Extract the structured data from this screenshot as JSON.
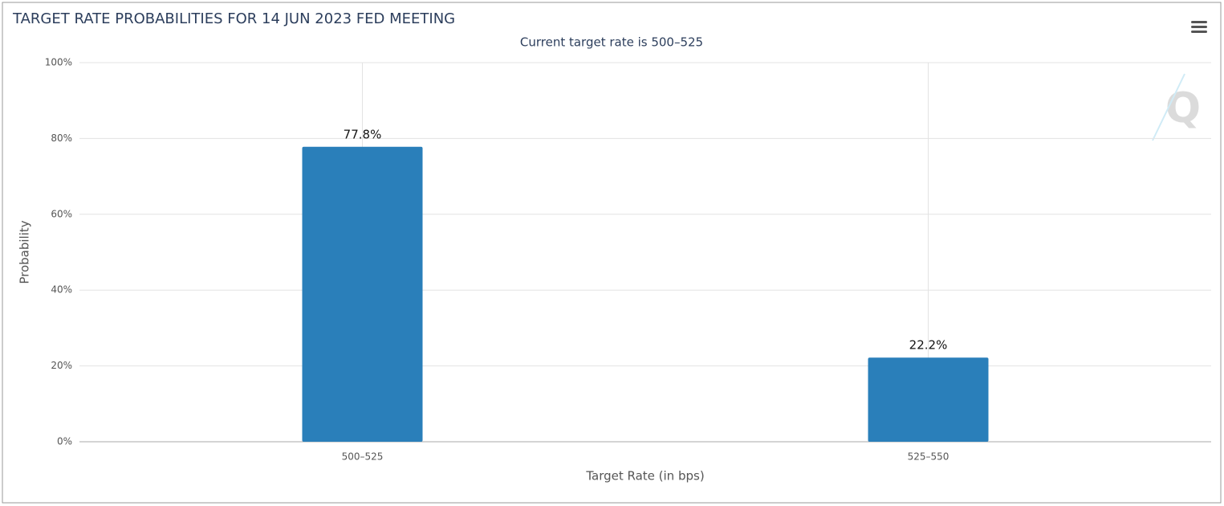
{
  "chart_data": {
    "type": "bar",
    "title": "TARGET RATE PROBABILITIES FOR 14 JUN 2023 FED MEETING",
    "subtitle": "Current target rate is 500–525",
    "x_label": "Target Rate (in bps)",
    "y_label": "Probability",
    "categories": [
      "500–525",
      "525–550"
    ],
    "values": [
      77.8,
      22.2
    ],
    "value_labels": [
      "77.8%",
      "22.2%"
    ],
    "color": "#2a7fba",
    "ylim": [
      0,
      100
    ],
    "yticks": [
      {
        "value": 0,
        "label": "0%"
      },
      {
        "value": 20,
        "label": "20%"
      },
      {
        "value": 40,
        "label": "40%"
      },
      {
        "value": 60,
        "label": "60%"
      },
      {
        "value": 80,
        "label": "80%"
      },
      {
        "value": 100,
        "label": "100%"
      }
    ],
    "grid": true
  }
}
